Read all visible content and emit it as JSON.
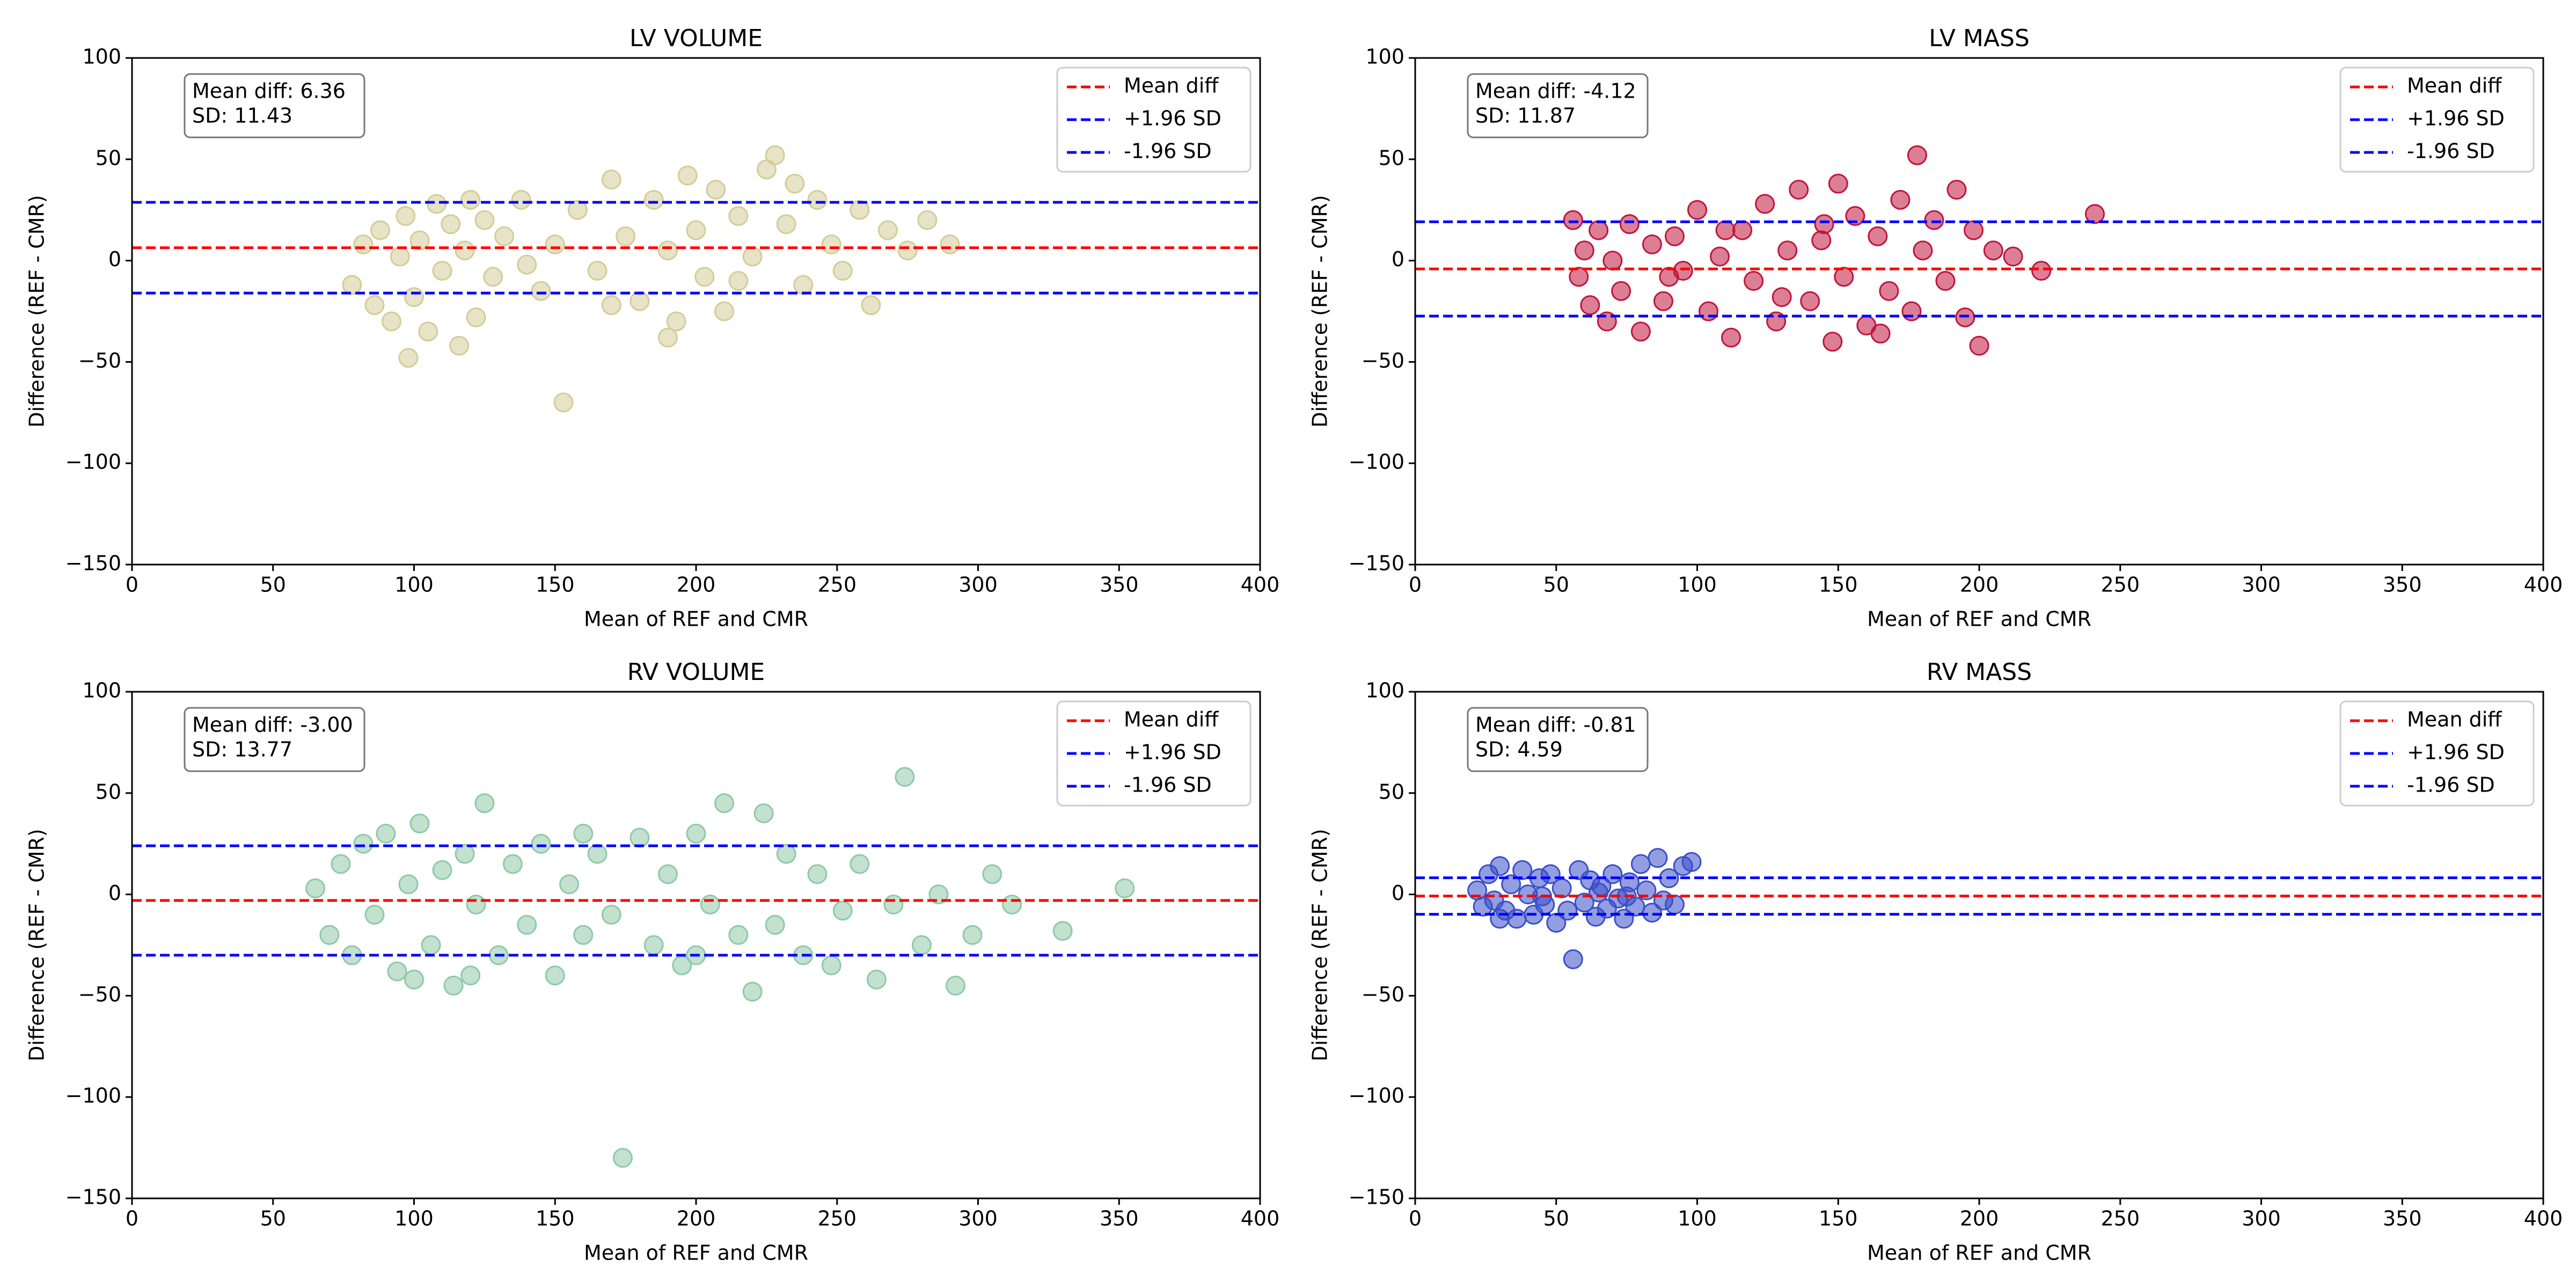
{
  "chart_data": [
    {
      "type": "scatter",
      "title": "LV VOLUME",
      "xlabel": "Mean of REF and CMR",
      "ylabel": "Difference (REF - CMR)",
      "xlim": [
        0,
        400
      ],
      "ylim": [
        -150,
        100
      ],
      "xticks": [
        0,
        50,
        100,
        150,
        200,
        250,
        300,
        350,
        400
      ],
      "yticks": [
        {
          "value": -150,
          "label": "−150"
        },
        {
          "value": -100,
          "label": "−100"
        },
        {
          "value": -50,
          "label": "−50"
        },
        0,
        50,
        100
      ],
      "annotation": [
        "Mean diff: 6.36",
        "SD: 11.43"
      ],
      "legend": "upper right",
      "color": "#d4cc98",
      "lines": [
        {
          "name": "Mean diff",
          "color": "#ff0000",
          "value": 6.36
        },
        {
          "name": "+1.96 SD",
          "color": "#0000ff",
          "value": 28.76
        },
        {
          "name": "-1.96 SD",
          "color": "#0000ff",
          "value": -16.04
        }
      ],
      "points": [
        [
          78,
          -12
        ],
        [
          82,
          8
        ],
        [
          86,
          -22
        ],
        [
          88,
          15
        ],
        [
          92,
          -30
        ],
        [
          95,
          2
        ],
        [
          97,
          22
        ],
        [
          100,
          -18
        ],
        [
          102,
          10
        ],
        [
          105,
          -35
        ],
        [
          108,
          28
        ],
        [
          110,
          -5
        ],
        [
          113,
          18
        ],
        [
          116,
          -42
        ],
        [
          118,
          5
        ],
        [
          122,
          -28
        ],
        [
          125,
          20
        ],
        [
          128,
          -8
        ],
        [
          132,
          12
        ],
        [
          138,
          30
        ],
        [
          145,
          -15
        ],
        [
          150,
          8
        ],
        [
          153,
          -70
        ],
        [
          158,
          25
        ],
        [
          165,
          -5
        ],
        [
          170,
          40
        ],
        [
          175,
          12
        ],
        [
          180,
          -20
        ],
        [
          185,
          30
        ],
        [
          190,
          5
        ],
        [
          193,
          -30
        ],
        [
          197,
          42
        ],
        [
          200,
          15
        ],
        [
          203,
          -8
        ],
        [
          207,
          35
        ],
        [
          210,
          -25
        ],
        [
          215,
          22
        ],
        [
          220,
          2
        ],
        [
          225,
          45
        ],
        [
          228,
          52
        ],
        [
          232,
          18
        ],
        [
          238,
          -12
        ],
        [
          243,
          30
        ],
        [
          248,
          8
        ],
        [
          252,
          -5
        ],
        [
          258,
          25
        ],
        [
          262,
          -22
        ],
        [
          268,
          15
        ],
        [
          275,
          5
        ],
        [
          282,
          20
        ],
        [
          290,
          8
        ],
        [
          98,
          -48
        ],
        [
          120,
          30
        ],
        [
          190,
          -38
        ],
        [
          215,
          -10
        ],
        [
          140,
          -2
        ],
        [
          170,
          -22
        ],
        [
          235,
          38
        ]
      ]
    },
    {
      "type": "scatter",
      "title": "LV MASS",
      "xlabel": "Mean of REF and CMR",
      "ylabel": "Difference (REF - CMR)",
      "xlim": [
        0,
        400
      ],
      "ylim": [
        -150,
        100
      ],
      "xticks": [
        0,
        50,
        100,
        150,
        200,
        250,
        300,
        350,
        400
      ],
      "yticks": [
        {
          "value": -150,
          "label": "−150"
        },
        {
          "value": -100,
          "label": "−100"
        },
        {
          "value": -50,
          "label": "−50"
        },
        0,
        50,
        100
      ],
      "annotation": [
        "Mean diff: -4.12",
        "SD: 11.87"
      ],
      "legend": "upper right",
      "color": "#c0143c",
      "lines": [
        {
          "name": "Mean diff",
          "color": "#ff0000",
          "value": -4.12
        },
        {
          "name": "+1.96 SD",
          "color": "#0000ff",
          "value": 19.15
        },
        {
          "name": "-1.96 SD",
          "color": "#0000ff",
          "value": -27.39
        }
      ],
      "points": [
        [
          56,
          20
        ],
        [
          58,
          -8
        ],
        [
          60,
          5
        ],
        [
          62,
          -22
        ],
        [
          65,
          15
        ],
        [
          68,
          -30
        ],
        [
          70,
          0
        ],
        [
          73,
          -15
        ],
        [
          76,
          18
        ],
        [
          80,
          -35
        ],
        [
          84,
          8
        ],
        [
          88,
          -20
        ],
        [
          92,
          12
        ],
        [
          95,
          -5
        ],
        [
          100,
          25
        ],
        [
          104,
          -25
        ],
        [
          108,
          2
        ],
        [
          112,
          -38
        ],
        [
          116,
          15
        ],
        [
          120,
          -10
        ],
        [
          124,
          28
        ],
        [
          128,
          -30
        ],
        [
          132,
          5
        ],
        [
          136,
          35
        ],
        [
          140,
          -20
        ],
        [
          144,
          10
        ],
        [
          148,
          -40
        ],
        [
          150,
          38
        ],
        [
          152,
          -8
        ],
        [
          156,
          22
        ],
        [
          160,
          -32
        ],
        [
          164,
          12
        ],
        [
          168,
          -15
        ],
        [
          172,
          30
        ],
        [
          176,
          -25
        ],
        [
          180,
          5
        ],
        [
          184,
          20
        ],
        [
          188,
          -10
        ],
        [
          192,
          35
        ],
        [
          195,
          -28
        ],
        [
          198,
          15
        ],
        [
          200,
          -42
        ],
        [
          205,
          5
        ],
        [
          212,
          2
        ],
        [
          222,
          -5
        ],
        [
          241,
          23
        ],
        [
          178,
          52
        ],
        [
          130,
          -18
        ],
        [
          110,
          15
        ],
        [
          90,
          -8
        ],
        [
          165,
          -36
        ],
        [
          145,
          18
        ]
      ]
    },
    {
      "type": "scatter",
      "title": "RV VOLUME",
      "xlabel": "Mean of REF and CMR",
      "ylabel": "Difference (REF - CMR)",
      "xlim": [
        0,
        400
      ],
      "ylim": [
        -150,
        100
      ],
      "xticks": [
        0,
        50,
        100,
        150,
        200,
        250,
        300,
        350,
        400
      ],
      "yticks": [
        {
          "value": -150,
          "label": "−150"
        },
        {
          "value": -100,
          "label": "−100"
        },
        {
          "value": -50,
          "label": "−50"
        },
        0,
        50,
        100
      ],
      "annotation": [
        "Mean diff: -3.00",
        "SD: 13.77"
      ],
      "legend": "upper right",
      "color": "#8fc9a8",
      "lines": [
        {
          "name": "Mean diff",
          "color": "#ff0000",
          "value": -3.0
        },
        {
          "name": "+1.96 SD",
          "color": "#0000ff",
          "value": 23.99
        },
        {
          "name": "-1.96 SD",
          "color": "#0000ff",
          "value": -29.99
        }
      ],
      "points": [
        [
          65,
          3
        ],
        [
          70,
          -20
        ],
        [
          74,
          15
        ],
        [
          78,
          -30
        ],
        [
          82,
          25
        ],
        [
          86,
          -10
        ],
        [
          90,
          30
        ],
        [
          94,
          -38
        ],
        [
          98,
          5
        ],
        [
          102,
          35
        ],
        [
          106,
          -25
        ],
        [
          110,
          12
        ],
        [
          114,
          -45
        ],
        [
          118,
          20
        ],
        [
          122,
          -5
        ],
        [
          125,
          45
        ],
        [
          130,
          -30
        ],
        [
          135,
          15
        ],
        [
          140,
          -15
        ],
        [
          145,
          25
        ],
        [
          150,
          -40
        ],
        [
          155,
          5
        ],
        [
          160,
          -20
        ],
        [
          165,
          20
        ],
        [
          170,
          -10
        ],
        [
          174,
          -130
        ],
        [
          180,
          28
        ],
        [
          185,
          -25
        ],
        [
          190,
          10
        ],
        [
          195,
          -35
        ],
        [
          200,
          30
        ],
        [
          205,
          -5
        ],
        [
          210,
          45
        ],
        [
          215,
          -20
        ],
        [
          220,
          -48
        ],
        [
          224,
          40
        ],
        [
          228,
          -15
        ],
        [
          232,
          20
        ],
        [
          238,
          -30
        ],
        [
          243,
          10
        ],
        [
          248,
          -35
        ],
        [
          252,
          -8
        ],
        [
          258,
          15
        ],
        [
          264,
          -42
        ],
        [
          270,
          -5
        ],
        [
          274,
          58
        ],
        [
          280,
          -25
        ],
        [
          286,
          0
        ],
        [
          292,
          -45
        ],
        [
          298,
          -20
        ],
        [
          305,
          10
        ],
        [
          312,
          -5
        ],
        [
          330,
          -18
        ],
        [
          352,
          3
        ],
        [
          120,
          -40
        ],
        [
          200,
          -30
        ],
        [
          100,
          -42
        ],
        [
          160,
          30
        ]
      ]
    },
    {
      "type": "scatter",
      "title": "RV MASS",
      "xlabel": "Mean of REF and CMR",
      "ylabel": "Difference (REF - CMR)",
      "xlim": [
        0,
        400
      ],
      "ylim": [
        -150,
        100
      ],
      "xticks": [
        0,
        50,
        100,
        150,
        200,
        250,
        300,
        350,
        400
      ],
      "yticks": [
        {
          "value": -150,
          "label": "−150"
        },
        {
          "value": -100,
          "label": "−100"
        },
        {
          "value": -50,
          "label": "−50"
        },
        0,
        50,
        100
      ],
      "annotation": [
        "Mean diff: -0.81",
        "SD: 4.59"
      ],
      "legend": "upper right",
      "color": "#3a4fc8",
      "lines": [
        {
          "name": "Mean diff",
          "color": "#ff0000",
          "value": -0.81
        },
        {
          "name": "+1.96 SD",
          "color": "#0000ff",
          "value": 8.19
        },
        {
          "name": "-1.96 SD",
          "color": "#0000ff",
          "value": -9.81
        }
      ],
      "points": [
        [
          22,
          2
        ],
        [
          24,
          -6
        ],
        [
          26,
          10
        ],
        [
          28,
          -3
        ],
        [
          30,
          14
        ],
        [
          32,
          -8
        ],
        [
          34,
          5
        ],
        [
          36,
          -12
        ],
        [
          38,
          12
        ],
        [
          40,
          0
        ],
        [
          42,
          -10
        ],
        [
          44,
          8
        ],
        [
          46,
          -5
        ],
        [
          48,
          10
        ],
        [
          50,
          -14
        ],
        [
          52,
          3
        ],
        [
          54,
          -8
        ],
        [
          56,
          -32
        ],
        [
          58,
          12
        ],
        [
          60,
          -4
        ],
        [
          62,
          7
        ],
        [
          64,
          -11
        ],
        [
          66,
          4
        ],
        [
          68,
          -7
        ],
        [
          70,
          10
        ],
        [
          72,
          -2
        ],
        [
          74,
          -12
        ],
        [
          76,
          6
        ],
        [
          78,
          -6
        ],
        [
          80,
          15
        ],
        [
          82,
          2
        ],
        [
          84,
          -9
        ],
        [
          86,
          18
        ],
        [
          88,
          -3
        ],
        [
          90,
          8
        ],
        [
          92,
          -5
        ],
        [
          95,
          14
        ],
        [
          98,
          16
        ],
        [
          45,
          -1
        ],
        [
          65,
          1
        ],
        [
          30,
          -12
        ],
        [
          75,
          -1
        ]
      ]
    }
  ]
}
